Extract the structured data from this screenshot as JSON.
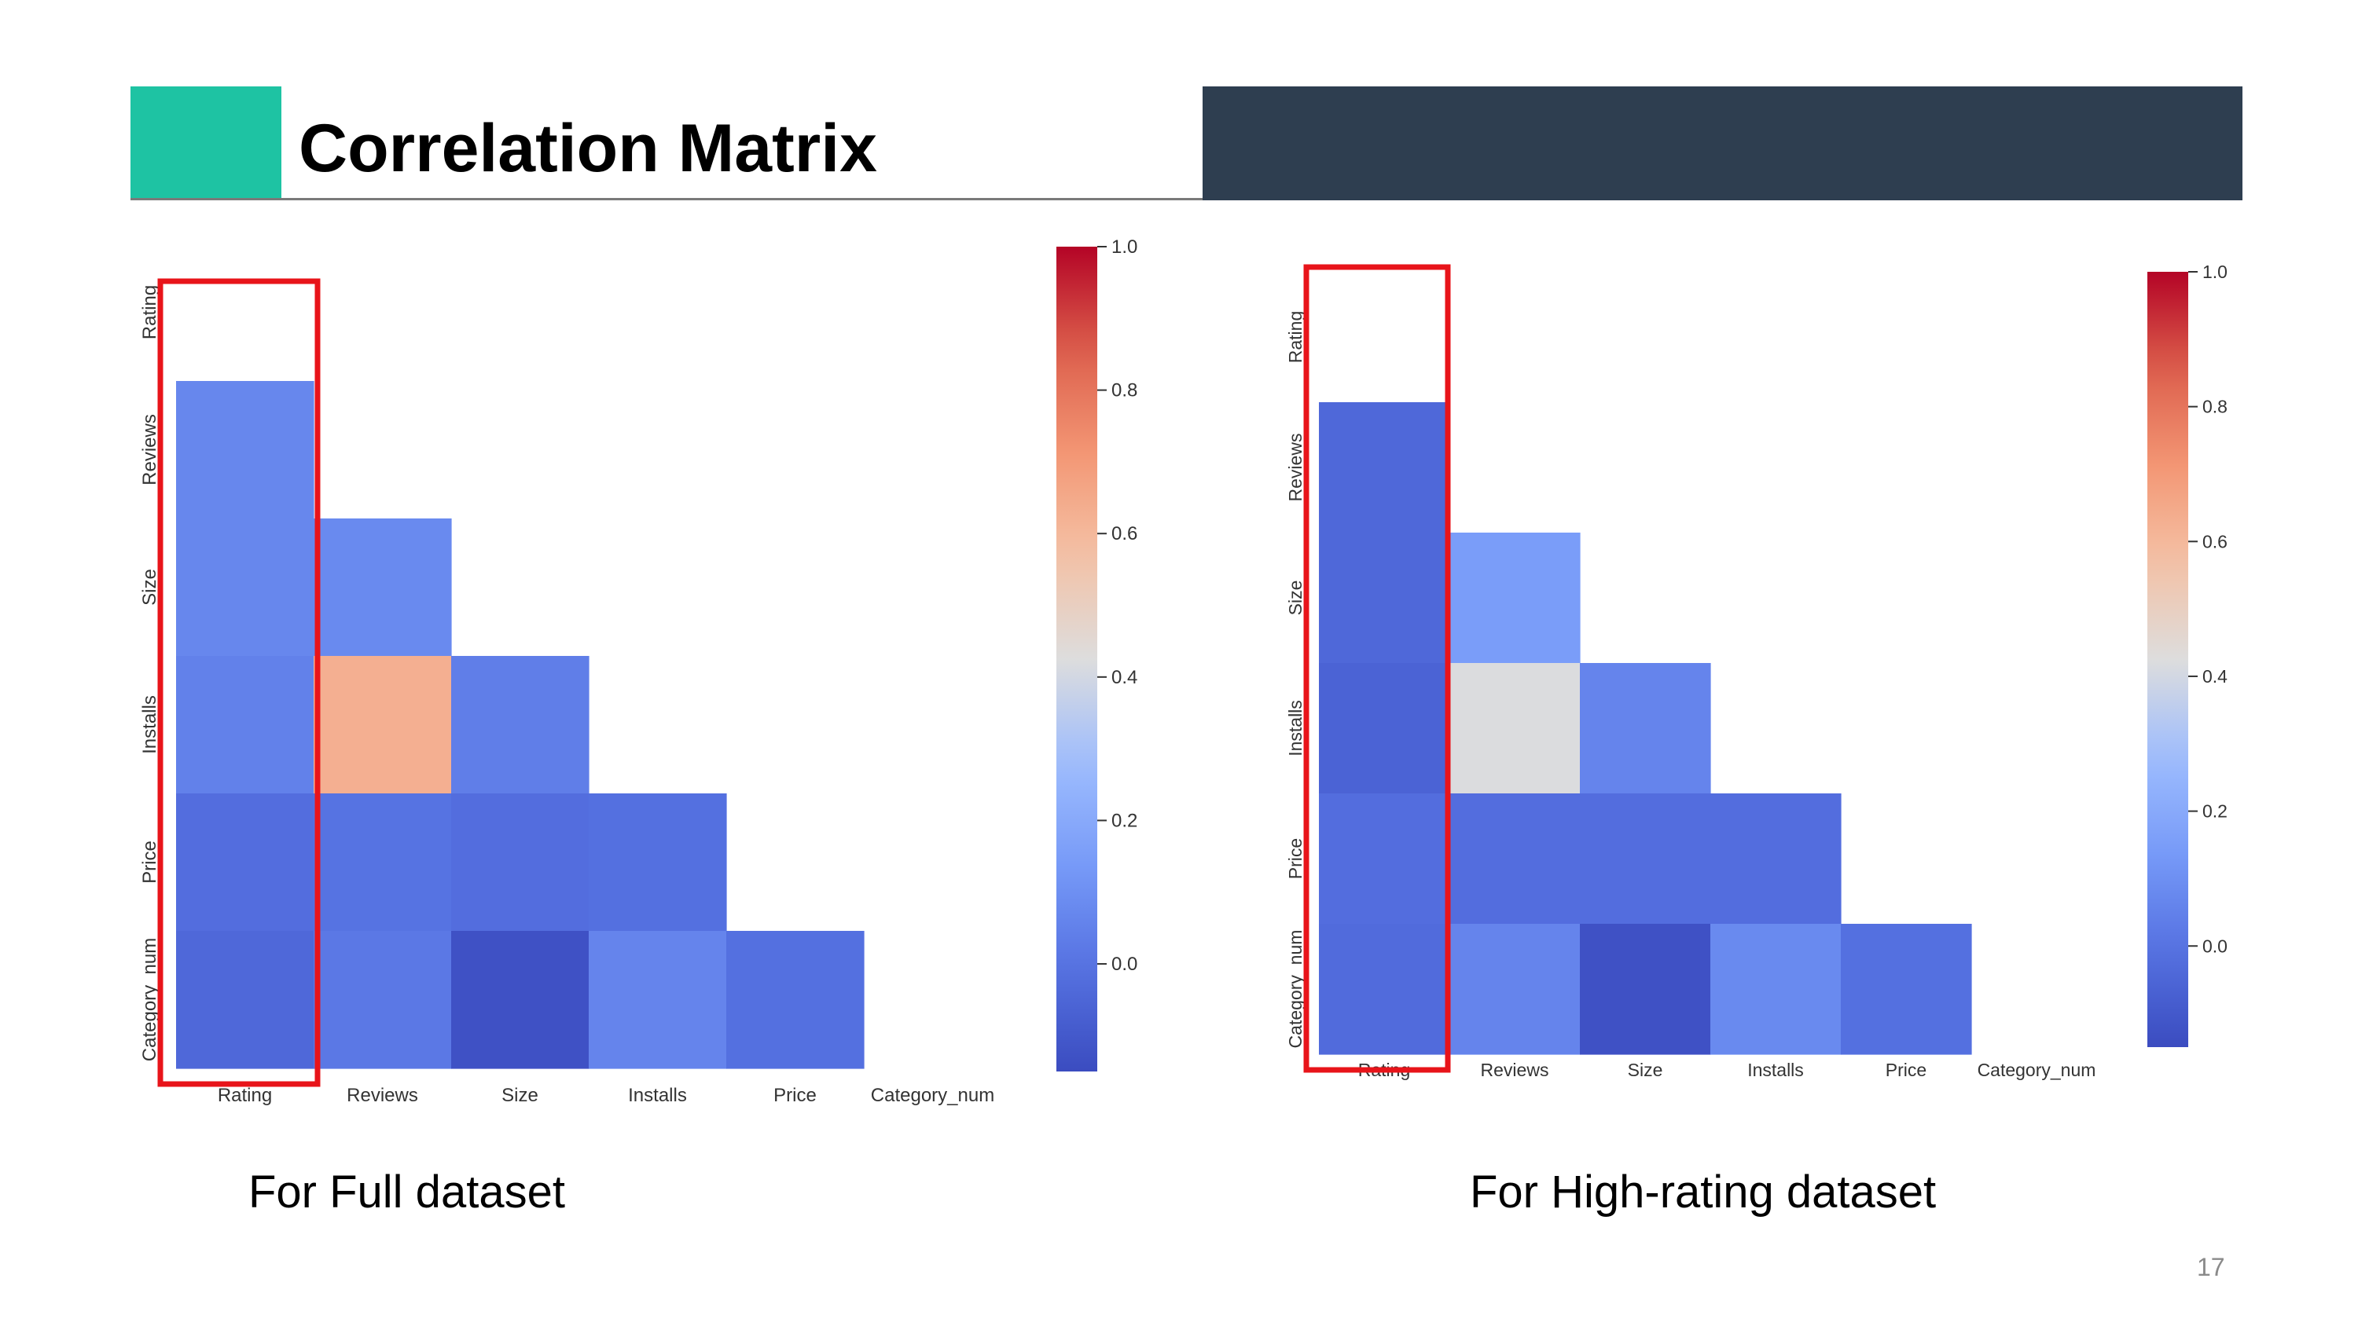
{
  "slide": {
    "title": "Correlation Matrix",
    "page_number": "17",
    "accent_color": "#1ec3a3",
    "bar_color": "#2e3e50",
    "highlight_color": "#e8141a"
  },
  "chart_data": [
    {
      "type": "heatmap",
      "caption": "For Full dataset",
      "title": "",
      "xlabel": "",
      "ylabel": "",
      "labels": [
        "Rating",
        "Reviews",
        "Size",
        "Installs",
        "Price",
        "Category_num"
      ],
      "mask": "upper-triangle-including-diagonal",
      "matrix": [
        [
          null,
          null,
          null,
          null,
          null,
          null
        ],
        [
          0.07,
          null,
          null,
          null,
          null,
          null
        ],
        [
          0.07,
          0.08,
          null,
          null,
          null,
          null
        ],
        [
          0.05,
          0.63,
          0.04,
          null,
          null,
          null
        ],
        [
          -0.02,
          0.0,
          -0.02,
          -0.01,
          null,
          null
        ],
        [
          -0.04,
          0.02,
          -0.13,
          0.06,
          -0.01,
          null
        ]
      ],
      "colorbar": {
        "min": -0.15,
        "max": 1.0,
        "ticks": [
          "0.0",
          "0.2",
          "0.4",
          "0.6",
          "0.8",
          "1.0"
        ],
        "colormap": "coolwarm"
      },
      "highlight": "Rating column"
    },
    {
      "type": "heatmap",
      "caption": "For High-rating dataset",
      "title": "",
      "xlabel": "",
      "ylabel": "",
      "labels": [
        "Rating",
        "Reviews",
        "Size",
        "Installs",
        "Price",
        "Category_num"
      ],
      "mask": "upper-triangle-including-diagonal",
      "matrix": [
        [
          null,
          null,
          null,
          null,
          null,
          null
        ],
        [
          -0.04,
          null,
          null,
          null,
          null,
          null
        ],
        [
          -0.04,
          0.15,
          null,
          null,
          null,
          null
        ],
        [
          -0.06,
          0.42,
          0.06,
          null,
          null,
          null
        ],
        [
          -0.02,
          -0.02,
          -0.02,
          -0.02,
          null,
          null
        ],
        [
          -0.03,
          0.06,
          -0.13,
          0.08,
          -0.01,
          null
        ]
      ],
      "colorbar": {
        "min": -0.15,
        "max": 1.0,
        "ticks": [
          "0.0",
          "0.2",
          "0.4",
          "0.6",
          "0.8",
          "1.0"
        ],
        "colormap": "coolwarm"
      },
      "highlight": "Rating column"
    }
  ]
}
